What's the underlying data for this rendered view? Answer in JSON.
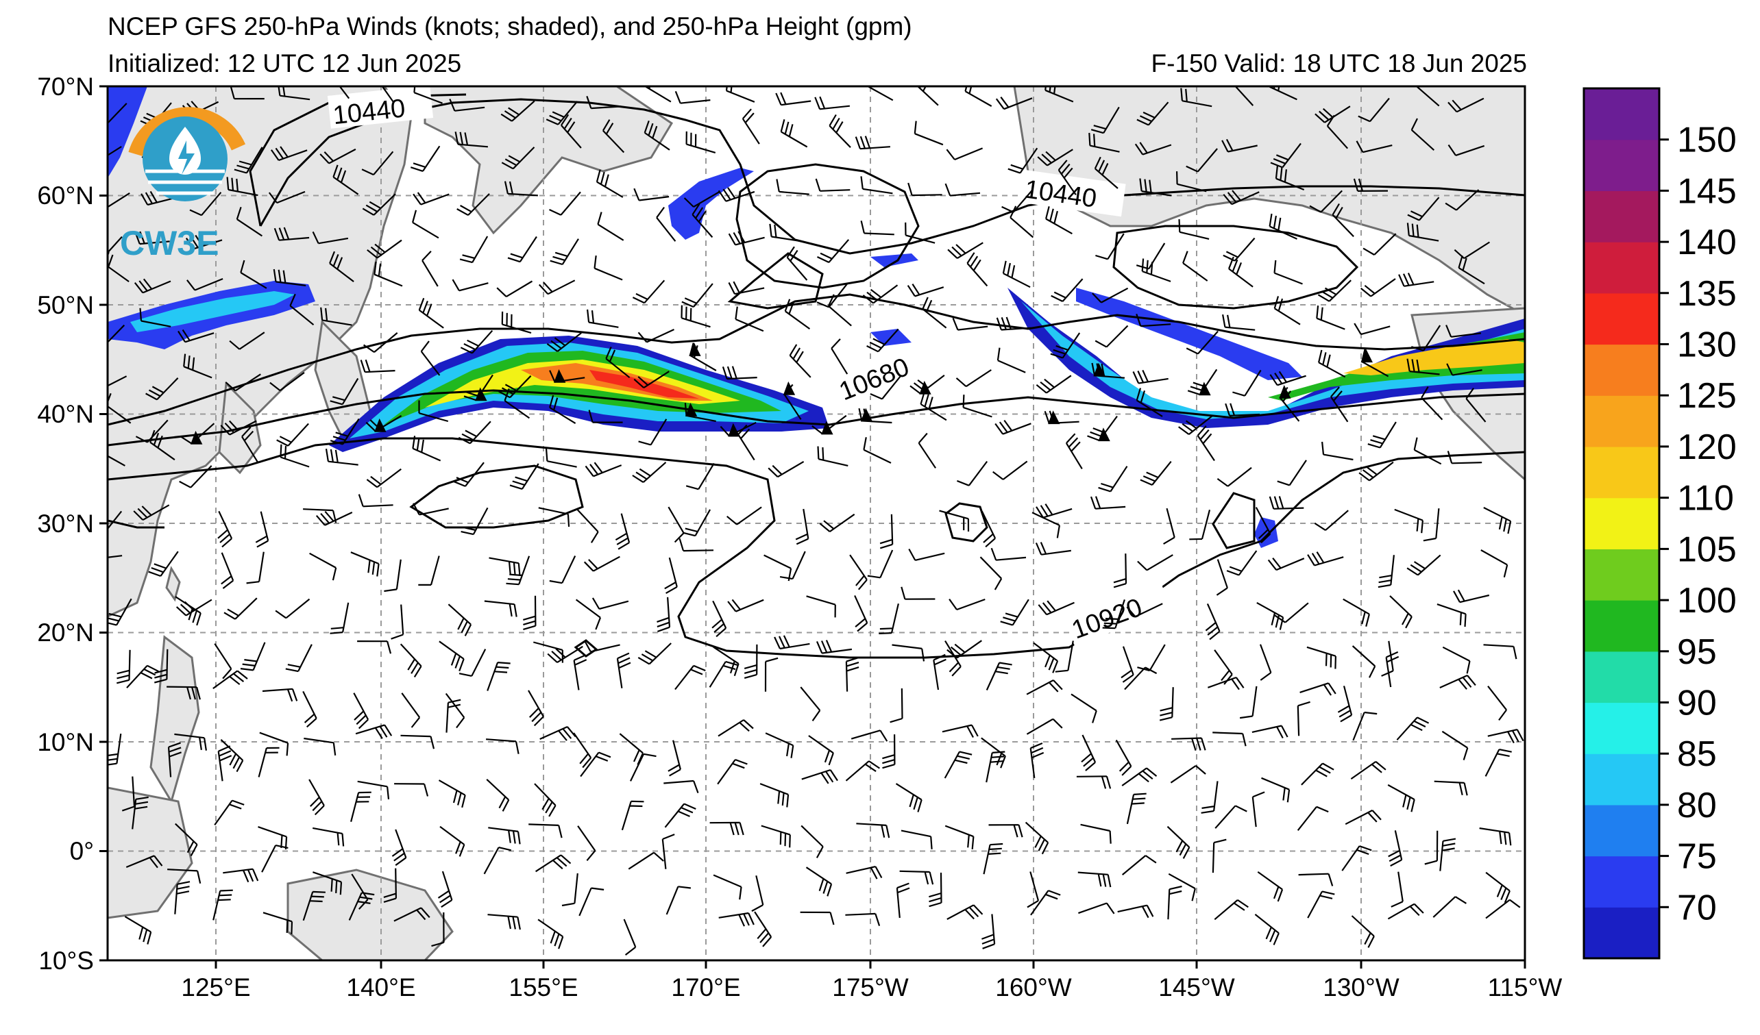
{
  "header": {
    "title": "NCEP GFS 250-hPa Winds (knots; shaded), and 250-hPa Height (gpm)",
    "initialized": "Initialized: 12 UTC 12 Jun 2025",
    "valid": "F-150  Valid: 18 UTC 18 Jun 2025"
  },
  "logo": {
    "text": "CW3E"
  },
  "map": {
    "lat_labels": [
      "70°N",
      "60°N",
      "50°N",
      "40°N",
      "30°N",
      "20°N",
      "10°N",
      "0°",
      "10°S"
    ],
    "lon_labels": [
      "125°E",
      "140°E",
      "155°E",
      "170°E",
      "175°W",
      "160°W",
      "145°W",
      "130°W",
      "115°W"
    ],
    "contour_labels": [
      {
        "id": "c10440-west",
        "text": "10440"
      },
      {
        "id": "c10440-east",
        "text": "10440"
      },
      {
        "id": "c10680",
        "text": "10680"
      },
      {
        "id": "c10920",
        "text": "10920"
      }
    ]
  },
  "colorbar": {
    "labels": [
      "150",
      "145",
      "140",
      "135",
      "130",
      "125",
      "120",
      "110",
      "105",
      "100",
      "95",
      "90",
      "85",
      "80",
      "75",
      "70"
    ],
    "colors": [
      "#1a1fc4",
      "#2a3cf0",
      "#1f7ff0",
      "#25c8f5",
      "#25f0e8",
      "#22dca8",
      "#20b820",
      "#6fcc1e",
      "#f2f216",
      "#f8c818",
      "#f8a41c",
      "#f77e1e",
      "#f52a1c",
      "#cf1d3c",
      "#a4195e",
      "#7e1d8c",
      "#6a1e96"
    ]
  }
}
